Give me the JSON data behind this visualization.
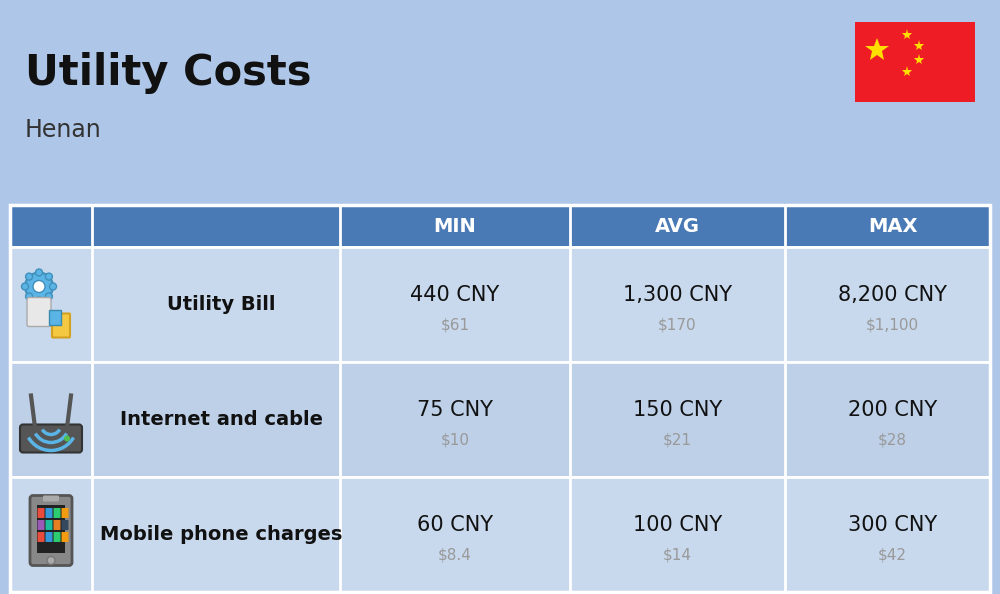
{
  "title": "Utility Costs",
  "subtitle": "Henan",
  "background_color": "#aec6e8",
  "header_bg_color": "#4a7ab5",
  "header_text_color": "#ffffff",
  "row_bg_color_1": "#c8d9ed",
  "row_bg_color_2": "#bdd0e8",
  "table_border_color": "#ffffff",
  "col_headers": [
    "MIN",
    "AVG",
    "MAX"
  ],
  "rows": [
    {
      "label": "Utility Bill",
      "icon": "utility",
      "min_cny": "440 CNY",
      "min_usd": "$61",
      "avg_cny": "1,300 CNY",
      "avg_usd": "$170",
      "max_cny": "8,200 CNY",
      "max_usd": "$1,100"
    },
    {
      "label": "Internet and cable",
      "icon": "internet",
      "min_cny": "75 CNY",
      "min_usd": "$10",
      "avg_cny": "150 CNY",
      "avg_usd": "$21",
      "max_cny": "200 CNY",
      "max_usd": "$28"
    },
    {
      "label": "Mobile phone charges",
      "icon": "mobile",
      "min_cny": "60 CNY",
      "min_usd": "$8.4",
      "avg_cny": "100 CNY",
      "avg_usd": "$14",
      "max_cny": "300 CNY",
      "max_usd": "$42"
    }
  ],
  "flag_colors": {
    "red": "#EE1C25",
    "yellow": "#FFDE00"
  },
  "title_fontsize": 30,
  "subtitle_fontsize": 17,
  "header_fontsize": 14,
  "label_fontsize": 14,
  "value_fontsize": 15,
  "usd_fontsize": 11,
  "usd_color": "#999999"
}
